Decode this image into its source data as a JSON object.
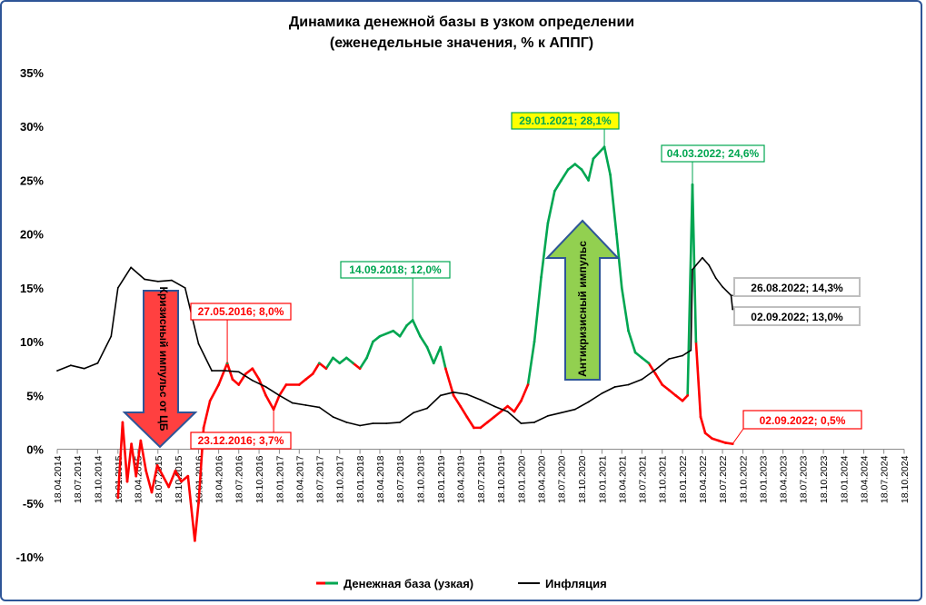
{
  "title_line1": "Динамика денежной базы в узком определении",
  "title_line2": "(еженедельные значения, % к АППГ)",
  "chart_data": {
    "type": "line",
    "title": "Динамика денежной базы в узком определении (еженедельные значения, % к АППГ)",
    "ylim": [
      -10,
      35
    ],
    "yticks": [
      "35%",
      "30%",
      "25%",
      "20%",
      "15%",
      "10%",
      "5%",
      "0%",
      "-5%",
      "-10%"
    ],
    "xticks": [
      "18.04.2014",
      "18.07.2014",
      "18.10.2014",
      "18.01.2015",
      "18.04.2015",
      "18.07.2015",
      "18.10.2015",
      "18.01.2016",
      "18.04.2016",
      "18.07.2016",
      "18.10.2016",
      "18.01.2017",
      "18.04.2017",
      "18.07.2017",
      "18.10.2017",
      "18.01.2018",
      "18.04.2018",
      "18.07.2018",
      "18.10.2018",
      "18.01.2019",
      "18.04.2019",
      "18.07.2019",
      "18.10.2019",
      "18.01.2020",
      "18.04.2020",
      "18.07.2020",
      "18.10.2020",
      "18.01.2021",
      "18.04.2021",
      "18.07.2021",
      "18.10.2021",
      "18.01.2022",
      "18.04.2022",
      "18.07.2022",
      "18.10.2022",
      "18.01.2023",
      "18.04.2023",
      "18.07.2023",
      "18.10.2023",
      "18.01.2024",
      "18.04.2024",
      "18.07.2024",
      "18.10.2024"
    ],
    "grid": false,
    "legend_position": "bottom",
    "series": [
      {
        "name": "Денежная база (узкая)",
        "color": "#00a651",
        "color_negative": "#ff0000",
        "points": [
          [
            "2015-01-18",
            -4.5
          ],
          [
            "2015-02-08",
            2.5
          ],
          [
            "2015-03-01",
            -3.0
          ],
          [
            "2015-03-20",
            0.5
          ],
          [
            "2015-04-10",
            -2.5
          ],
          [
            "2015-05-01",
            0.8
          ],
          [
            "2015-05-25",
            -2.0
          ],
          [
            "2015-06-20",
            -4.0
          ],
          [
            "2015-07-15",
            -1.5
          ],
          [
            "2015-08-10",
            -2.5
          ],
          [
            "2015-09-05",
            -3.5
          ],
          [
            "2015-10-05",
            -2.0
          ],
          [
            "2015-11-01",
            -3.0
          ],
          [
            "2015-12-01",
            -2.5
          ],
          [
            "2016-01-01",
            -8.5
          ],
          [
            "2016-01-18",
            -5.0
          ],
          [
            "2016-02-10",
            2.0
          ],
          [
            "2016-03-10",
            4.5
          ],
          [
            "2016-04-18",
            6.0
          ],
          [
            "2016-05-27",
            8.0
          ],
          [
            "2016-06-20",
            6.5
          ],
          [
            "2016-07-18",
            6.0
          ],
          [
            "2016-08-18",
            7.0
          ],
          [
            "2016-09-18",
            7.5
          ],
          [
            "2016-10-18",
            6.5
          ],
          [
            "2016-11-18",
            5.0
          ],
          [
            "2016-12-23",
            3.7
          ],
          [
            "2017-01-18",
            5.0
          ],
          [
            "2017-02-18",
            6.0
          ],
          [
            "2017-04-18",
            6.0
          ],
          [
            "2017-05-18",
            6.5
          ],
          [
            "2017-06-18",
            7.0
          ],
          [
            "2017-07-18",
            8.0
          ],
          [
            "2017-08-18",
            7.5
          ],
          [
            "2017-09-18",
            8.5
          ],
          [
            "2017-10-18",
            8.0
          ],
          [
            "2017-11-18",
            8.5
          ],
          [
            "2017-12-18",
            8.0
          ],
          [
            "2018-01-18",
            7.5
          ],
          [
            "2018-02-18",
            8.5
          ],
          [
            "2018-03-18",
            10.0
          ],
          [
            "2018-04-18",
            10.5
          ],
          [
            "2018-06-18",
            11.0
          ],
          [
            "2018-07-18",
            10.5
          ],
          [
            "2018-08-18",
            11.5
          ],
          [
            "2018-09-14",
            12.0
          ],
          [
            "2018-10-18",
            10.5
          ],
          [
            "2018-11-18",
            9.5
          ],
          [
            "2018-12-18",
            8.0
          ],
          [
            "2019-01-18",
            9.5
          ],
          [
            "2019-02-10",
            7.5
          ],
          [
            "2019-03-18",
            5.0
          ],
          [
            "2019-04-18",
            4.0
          ],
          [
            "2019-05-18",
            3.0
          ],
          [
            "2019-06-18",
            2.0
          ],
          [
            "2019-07-18",
            2.0
          ],
          [
            "2019-08-18",
            2.5
          ],
          [
            "2019-09-18",
            3.0
          ],
          [
            "2019-10-18",
            3.5
          ],
          [
            "2019-11-18",
            4.0
          ],
          [
            "2019-12-18",
            3.5
          ],
          [
            "2020-01-18",
            4.5
          ],
          [
            "2020-02-18",
            6.0
          ],
          [
            "2020-03-18",
            10.0
          ],
          [
            "2020-04-18",
            16.0
          ],
          [
            "2020-05-18",
            21.0
          ],
          [
            "2020-06-18",
            24.0
          ],
          [
            "2020-07-18",
            25.0
          ],
          [
            "2020-08-18",
            26.0
          ],
          [
            "2020-09-18",
            26.5
          ],
          [
            "2020-10-18",
            26.0
          ],
          [
            "2020-11-18",
            25.0
          ],
          [
            "2020-12-10",
            27.0
          ],
          [
            "2021-01-29",
            28.1
          ],
          [
            "2021-02-25",
            25.5
          ],
          [
            "2021-03-25",
            20.0
          ],
          [
            "2021-04-18",
            15.0
          ],
          [
            "2021-05-18",
            11.0
          ],
          [
            "2021-06-18",
            9.0
          ],
          [
            "2021-07-18",
            8.5
          ],
          [
            "2021-08-18",
            8.0
          ],
          [
            "2021-09-18",
            7.0
          ],
          [
            "2021-10-18",
            6.0
          ],
          [
            "2021-11-18",
            5.5
          ],
          [
            "2021-12-18",
            5.0
          ],
          [
            "2022-01-18",
            4.5
          ],
          [
            "2022-02-10",
            5.0
          ],
          [
            "2022-03-04",
            24.6
          ],
          [
            "2022-03-20",
            10.0
          ],
          [
            "2022-04-10",
            3.0
          ],
          [
            "2022-05-01",
            1.5
          ],
          [
            "2022-06-01",
            1.0
          ],
          [
            "2022-07-01",
            0.8
          ],
          [
            "2022-08-01",
            0.6
          ],
          [
            "2022-09-02",
            0.5
          ]
        ]
      },
      {
        "name": "Инфляция",
        "color": "#000000",
        "points": [
          [
            "2014-04-18",
            7.3
          ],
          [
            "2014-06-18",
            7.8
          ],
          [
            "2014-08-18",
            7.5
          ],
          [
            "2014-10-18",
            8.0
          ],
          [
            "2014-12-18",
            10.5
          ],
          [
            "2015-01-18",
            15.0
          ],
          [
            "2015-03-18",
            16.9
          ],
          [
            "2015-05-18",
            15.8
          ],
          [
            "2015-07-18",
            15.6
          ],
          [
            "2015-09-18",
            15.7
          ],
          [
            "2015-11-18",
            15.0
          ],
          [
            "2016-01-18",
            9.8
          ],
          [
            "2016-03-18",
            7.3
          ],
          [
            "2016-05-18",
            7.3
          ],
          [
            "2016-07-18",
            7.2
          ],
          [
            "2016-09-18",
            6.4
          ],
          [
            "2016-11-18",
            5.8
          ],
          [
            "2017-01-18",
            5.0
          ],
          [
            "2017-03-18",
            4.3
          ],
          [
            "2017-05-18",
            4.1
          ],
          [
            "2017-07-18",
            3.9
          ],
          [
            "2017-09-18",
            3.0
          ],
          [
            "2017-11-18",
            2.5
          ],
          [
            "2018-01-18",
            2.2
          ],
          [
            "2018-03-18",
            2.4
          ],
          [
            "2018-05-18",
            2.4
          ],
          [
            "2018-07-18",
            2.5
          ],
          [
            "2018-09-18",
            3.4
          ],
          [
            "2018-11-18",
            3.8
          ],
          [
            "2019-01-18",
            5.0
          ],
          [
            "2019-03-18",
            5.3
          ],
          [
            "2019-05-18",
            5.1
          ],
          [
            "2019-07-18",
            4.6
          ],
          [
            "2019-09-18",
            4.0
          ],
          [
            "2019-11-18",
            3.5
          ],
          [
            "2020-01-18",
            2.4
          ],
          [
            "2020-03-18",
            2.5
          ],
          [
            "2020-05-18",
            3.1
          ],
          [
            "2020-07-18",
            3.4
          ],
          [
            "2020-09-18",
            3.7
          ],
          [
            "2020-11-18",
            4.4
          ],
          [
            "2021-01-18",
            5.2
          ],
          [
            "2021-03-18",
            5.8
          ],
          [
            "2021-05-18",
            6.0
          ],
          [
            "2021-07-18",
            6.5
          ],
          [
            "2021-09-18",
            7.4
          ],
          [
            "2021-11-18",
            8.4
          ],
          [
            "2022-01-18",
            8.7
          ],
          [
            "2022-02-25",
            9.2
          ],
          [
            "2022-03-04",
            16.7
          ],
          [
            "2022-04-18",
            17.8
          ],
          [
            "2022-05-18",
            17.1
          ],
          [
            "2022-06-18",
            15.9
          ],
          [
            "2022-07-18",
            15.1
          ],
          [
            "2022-08-26",
            14.3
          ],
          [
            "2022-09-02",
            13.0
          ]
        ]
      }
    ],
    "annotations": [
      {
        "text": "29.01.2021; 28,1%",
        "date": "2021-01-29",
        "value": 28.1,
        "fill": "#ffff00",
        "color": "#00a651"
      },
      {
        "text": "04.03.2022; 24,6%",
        "date": "2022-03-04",
        "value": 24.6,
        "fill": "#ffffff",
        "color": "#00a651"
      },
      {
        "text": "14.09.2018; 12,0%",
        "date": "2018-09-14",
        "value": 12.0,
        "fill": "#ffffff",
        "color": "#00a651"
      },
      {
        "text": "27.05.2016; 8,0%",
        "date": "2016-05-27",
        "value": 8.0,
        "fill": "#ffffff",
        "color": "#ff0000"
      },
      {
        "text": "23.12.2016; 3,7%",
        "date": "2016-12-23",
        "value": 3.7,
        "fill": "#ffffff",
        "color": "#ff0000"
      },
      {
        "text": "02.09.2022; 0,5%",
        "date": "2022-09-02",
        "value": 0.5,
        "fill": "#ffffff",
        "color": "#ff0000"
      },
      {
        "text": "26.08.2022; 14,3%",
        "date": "2022-08-26",
        "value": 14.3,
        "fill": "#ffffff",
        "color": "#000000"
      },
      {
        "text": "02.09.2022; 13,0%",
        "date": "2022-09-02",
        "value": 13.0,
        "fill": "#ffffff",
        "color": "#000000"
      }
    ],
    "arrows": [
      {
        "text": "Кризисный импульс от ЦБ",
        "direction": "down",
        "fill": "#ff4040"
      },
      {
        "text": "Антикризисный импульс",
        "direction": "up",
        "fill": "#92d050"
      }
    ]
  },
  "legend": {
    "money_base": "Денежная база (узкая)",
    "inflation": "Инфляция"
  }
}
